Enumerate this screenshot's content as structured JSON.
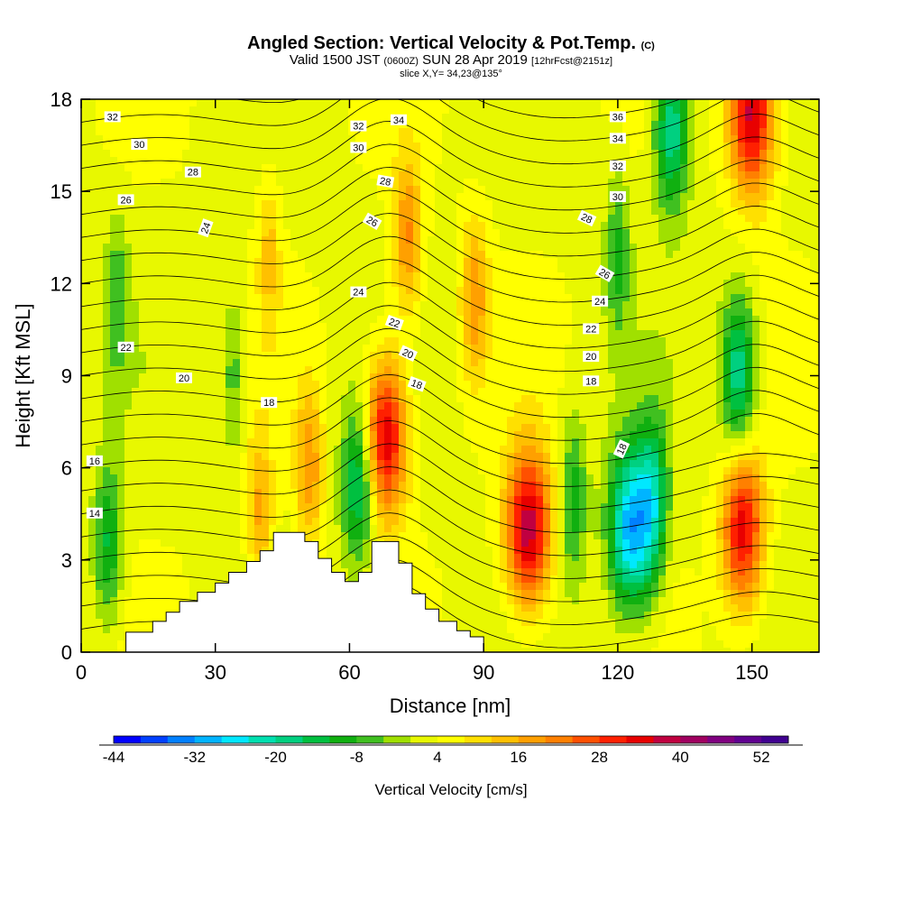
{
  "header": {
    "title": "Angled Section: Vertical Velocity & Pot.Temp.",
    "title_unit": "(C)",
    "valid_a": "Valid 1500 JST",
    "valid_z": "(0600Z)",
    "valid_b": "SUN 28 Apr 2019",
    "valid_fcst": "[12hrFcst@2151z]",
    "slice": "slice X,Y= 34,23@135°"
  },
  "chart_data": {
    "type": "heatmap",
    "title": "Angled Section: Vertical Velocity & Pot.Temp. (C)",
    "xlabel": "Distance [nm]",
    "ylabel": "Height [Kft MSL]",
    "xlim": [
      0,
      165
    ],
    "ylim": [
      0,
      18
    ],
    "x_ticks": [
      0,
      30,
      60,
      90,
      120,
      150
    ],
    "y_ticks": [
      0,
      3,
      6,
      9,
      12,
      15,
      18
    ],
    "fill_variable": "Vertical Velocity [cm/s]",
    "colorbar": {
      "label": "Vertical Velocity [cm/s]",
      "min": -44,
      "max": 56,
      "step": 4,
      "tick_labels": [
        -44,
        -32,
        -20,
        -8,
        4,
        16,
        28,
        40,
        52
      ],
      "colors": [
        "#0000ff",
        "#0040ff",
        "#0080ff",
        "#00b4ff",
        "#00e8ff",
        "#00e0b0",
        "#00d080",
        "#00c040",
        "#10b010",
        "#40c020",
        "#a0e000",
        "#e8f800",
        "#ffff00",
        "#ffe000",
        "#ffc000",
        "#ffa000",
        "#ff8000",
        "#ff5000",
        "#ff2000",
        "#e80000",
        "#c00040",
        "#a00060",
        "#800080",
        "#600090",
        "#400090"
      ]
    },
    "velocity_cells": [
      {
        "x": 68,
        "y": 7,
        "w": 34
      },
      {
        "x": 100,
        "y": 4,
        "w": 36
      },
      {
        "x": 148,
        "y": 4,
        "w": 32
      },
      {
        "x": 51,
        "y": 6,
        "w": 16
      },
      {
        "x": 40,
        "y": 4.5,
        "w": 14
      },
      {
        "x": 62,
        "y": 5.5,
        "w": -22
      },
      {
        "x": 110,
        "y": 5,
        "w": -14
      },
      {
        "x": 123,
        "y": 4,
        "w": -34
      },
      {
        "x": 128,
        "y": 5,
        "w": -18
      },
      {
        "x": 6,
        "y": 3.5,
        "w": -16
      },
      {
        "x": 150,
        "y": 17.5,
        "w": 36
      },
      {
        "x": 132,
        "y": 17,
        "w": -24
      },
      {
        "x": 147,
        "y": 9,
        "w": -24
      },
      {
        "x": 88,
        "y": 11.5,
        "w": 16
      },
      {
        "x": 73,
        "y": 13.5,
        "w": 18
      },
      {
        "x": 42,
        "y": 13,
        "w": 10
      },
      {
        "x": 120,
        "y": 13,
        "w": -12
      },
      {
        "x": 8,
        "y": 11.5,
        "w": -10
      },
      {
        "x": 34,
        "y": 9,
        "w": -10
      }
    ],
    "terrain": {
      "x": [
        0,
        10,
        16,
        19,
        22,
        26,
        30,
        33,
        37,
        40,
        43,
        47,
        50,
        53,
        56,
        59,
        62,
        65,
        68,
        71,
        74,
        77,
        80,
        84,
        87,
        90
      ],
      "y": [
        0,
        0.65,
        1.0,
        1.3,
        1.65,
        1.95,
        2.25,
        2.6,
        2.95,
        3.3,
        3.9,
        3.9,
        3.6,
        3.05,
        2.6,
        2.3,
        2.6,
        3.6,
        3.6,
        2.9,
        1.9,
        1.4,
        1.0,
        0.7,
        0.5,
        0
      ]
    },
    "theta_label_x": {
      "14": [
        5
      ],
      "16": [
        5
      ],
      "18": [
        42,
        118
      ],
      "20": [
        23,
        114
      ],
      "22": [
        10,
        70,
        114
      ],
      "24": [
        62,
        116
      ],
      "26": [
        10,
        117
      ],
      "28": [
        25,
        68,
        113
      ],
      "30": [
        13,
        62,
        120
      ],
      "32": [
        7,
        62,
        120
      ],
      "34": [
        71,
        120
      ],
      "36": [
        120
      ]
    },
    "theta_labels": [
      {
        "text": "14",
        "x": 3,
        "y": 4.5,
        "rot": 0
      },
      {
        "text": "16",
        "x": 3,
        "y": 6.2,
        "rot": 0
      },
      {
        "text": "18",
        "x": 42,
        "y": 8.1,
        "rot": 0
      },
      {
        "text": "18",
        "x": 75,
        "y": 8.7,
        "rot": 20
      },
      {
        "text": "18",
        "x": 114,
        "y": 8.8,
        "rot": 0
      },
      {
        "text": "18",
        "x": 121,
        "y": 6.6,
        "rot": -65
      },
      {
        "text": "20",
        "x": 23,
        "y": 8.9,
        "rot": 0
      },
      {
        "text": "20",
        "x": 73,
        "y": 9.7,
        "rot": 25
      },
      {
        "text": "20",
        "x": 114,
        "y": 9.6,
        "rot": 0
      },
      {
        "text": "22",
        "x": 10,
        "y": 9.9,
        "rot": 0
      },
      {
        "text": "22",
        "x": 70,
        "y": 10.7,
        "rot": 20
      },
      {
        "text": "22",
        "x": 114,
        "y": 10.5,
        "rot": 0
      },
      {
        "text": "24",
        "x": 62,
        "y": 11.7,
        "rot": 0
      },
      {
        "text": "24",
        "x": 116,
        "y": 11.4,
        "rot": 0
      },
      {
        "text": "24",
        "x": 28,
        "y": 13.8,
        "rot": -70
      },
      {
        "text": "26",
        "x": 10,
        "y": 14.7,
        "rot": 0
      },
      {
        "text": "26",
        "x": 65,
        "y": 14.0,
        "rot": 30
      },
      {
        "text": "26",
        "x": 117,
        "y": 12.3,
        "rot": 30
      },
      {
        "text": "28",
        "x": 25,
        "y": 15.6,
        "rot": 0
      },
      {
        "text": "28",
        "x": 68,
        "y": 15.3,
        "rot": 10
      },
      {
        "text": "28",
        "x": 113,
        "y": 14.1,
        "rot": 25
      },
      {
        "text": "30",
        "x": 13,
        "y": 16.5,
        "rot": 0
      },
      {
        "text": "30",
        "x": 62,
        "y": 16.4,
        "rot": 0
      },
      {
        "text": "30",
        "x": 120,
        "y": 14.8,
        "rot": 0
      },
      {
        "text": "32",
        "x": 7,
        "y": 17.4,
        "rot": 0
      },
      {
        "text": "32",
        "x": 62,
        "y": 17.1,
        "rot": 0
      },
      {
        "text": "32",
        "x": 120,
        "y": 15.8,
        "rot": 0
      },
      {
        "text": "34",
        "x": 71,
        "y": 17.3,
        "rot": 0
      },
      {
        "text": "34",
        "x": 120,
        "y": 16.7,
        "rot": 0
      },
      {
        "text": "36",
        "x": 120,
        "y": 17.4,
        "rot": 0
      }
    ]
  }
}
